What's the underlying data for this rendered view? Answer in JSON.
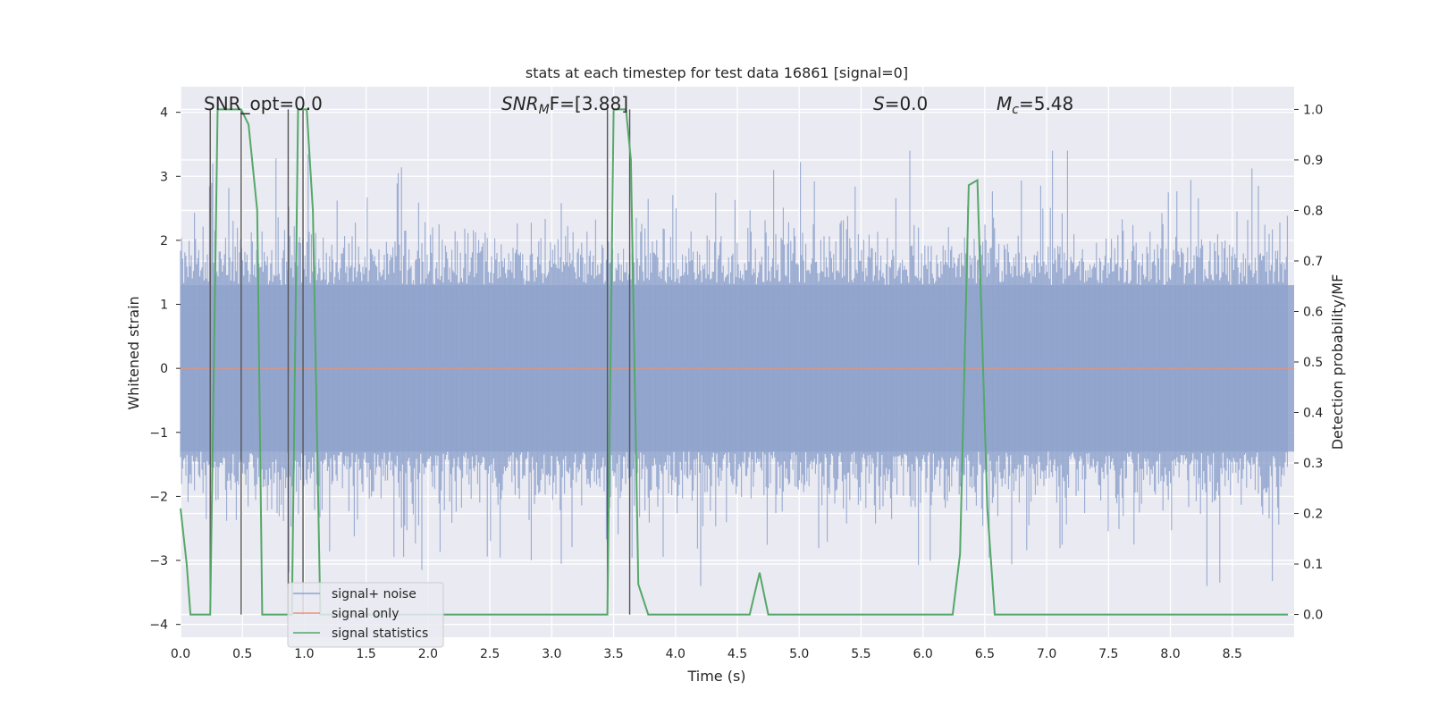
{
  "chart_data": {
    "type": "line",
    "title": "stats at each timestep for test data 16861 [signal=0]",
    "xlabel": "Time (s)",
    "ylabel": "Whitened strain",
    "y2label": "Detection probability/MF",
    "xlim": [
      0.0,
      9.0
    ],
    "ylim": [
      -4.2,
      4.4
    ],
    "y2lim": [
      -0.045,
      1.045
    ],
    "x_ticks": [
      "0.0",
      "0.5",
      "1.0",
      "1.5",
      "2.0",
      "2.5",
      "3.0",
      "3.5",
      "4.0",
      "4.5",
      "5.0",
      "5.5",
      "6.0",
      "6.5",
      "7.0",
      "7.5",
      "8.0",
      "8.5"
    ],
    "y_ticks": [
      "4",
      "3",
      "2",
      "1",
      "0",
      "−1",
      "−2",
      "−3",
      "−4"
    ],
    "y2_ticks": [
      "1.0",
      "0.9",
      "0.8",
      "0.7",
      "0.6",
      "0.5",
      "0.4",
      "0.3",
      "0.2",
      "0.1",
      "0.0"
    ],
    "grid": true,
    "legend_position": "lower-left",
    "annotations": {
      "snr_opt": "SNR_opt=0.0",
      "snr_mf_prefix": "SNR",
      "snr_mf_sub": "M",
      "snr_mf_suffix": "F=[3.88]",
      "s_label": "S",
      "s_value": "=0.0",
      "mc_label": "M",
      "mc_sub": "c",
      "mc_value": "=5.48"
    },
    "series": [
      {
        "name": "signal+ noise",
        "color": "#8fa3cc",
        "description": "whitened strain noise, approx. band ±1.5 with spikes to ±3.4"
      },
      {
        "name": "signal only",
        "color": "#e8937a",
        "x": [
          0.0,
          9.0
        ],
        "y": [
          0.0,
          0.0
        ]
      },
      {
        "name": "signal statistics",
        "color": "#55a868",
        "axis": "right",
        "x": [
          0.0,
          0.05,
          0.08,
          0.13,
          0.2,
          0.24,
          0.3,
          0.49,
          0.55,
          0.62,
          0.66,
          0.83,
          0.9,
          0.95,
          1.02,
          1.07,
          1.13,
          1.2,
          2.0,
          3.0,
          3.45,
          3.5,
          3.6,
          3.64,
          3.7,
          3.78,
          4.0,
          4.5,
          4.6,
          4.68,
          4.75,
          4.8,
          5.0,
          6.0,
          6.24,
          6.3,
          6.37,
          6.44,
          6.52,
          6.58,
          6.7,
          7.0,
          8.0,
          8.95
        ],
        "y": [
          0.21,
          0.1,
          0.0,
          0.0,
          0.0,
          0.0,
          1.0,
          1.0,
          0.97,
          0.8,
          0.0,
          0.0,
          0.0,
          1.0,
          1.0,
          0.8,
          0.0,
          0.0,
          0.0,
          0.0,
          0.0,
          1.0,
          1.0,
          0.9,
          0.06,
          0.0,
          0.0,
          0.0,
          0.0,
          0.083,
          0.0,
          0.0,
          0.0,
          0.0,
          0.0,
          0.12,
          0.85,
          0.86,
          0.21,
          0.0,
          0.0,
          0.0,
          0.0,
          0.0
        ]
      }
    ],
    "vertical_lines": [
      0.24,
      0.49,
      0.87,
      0.99,
      3.45,
      3.63
    ]
  }
}
